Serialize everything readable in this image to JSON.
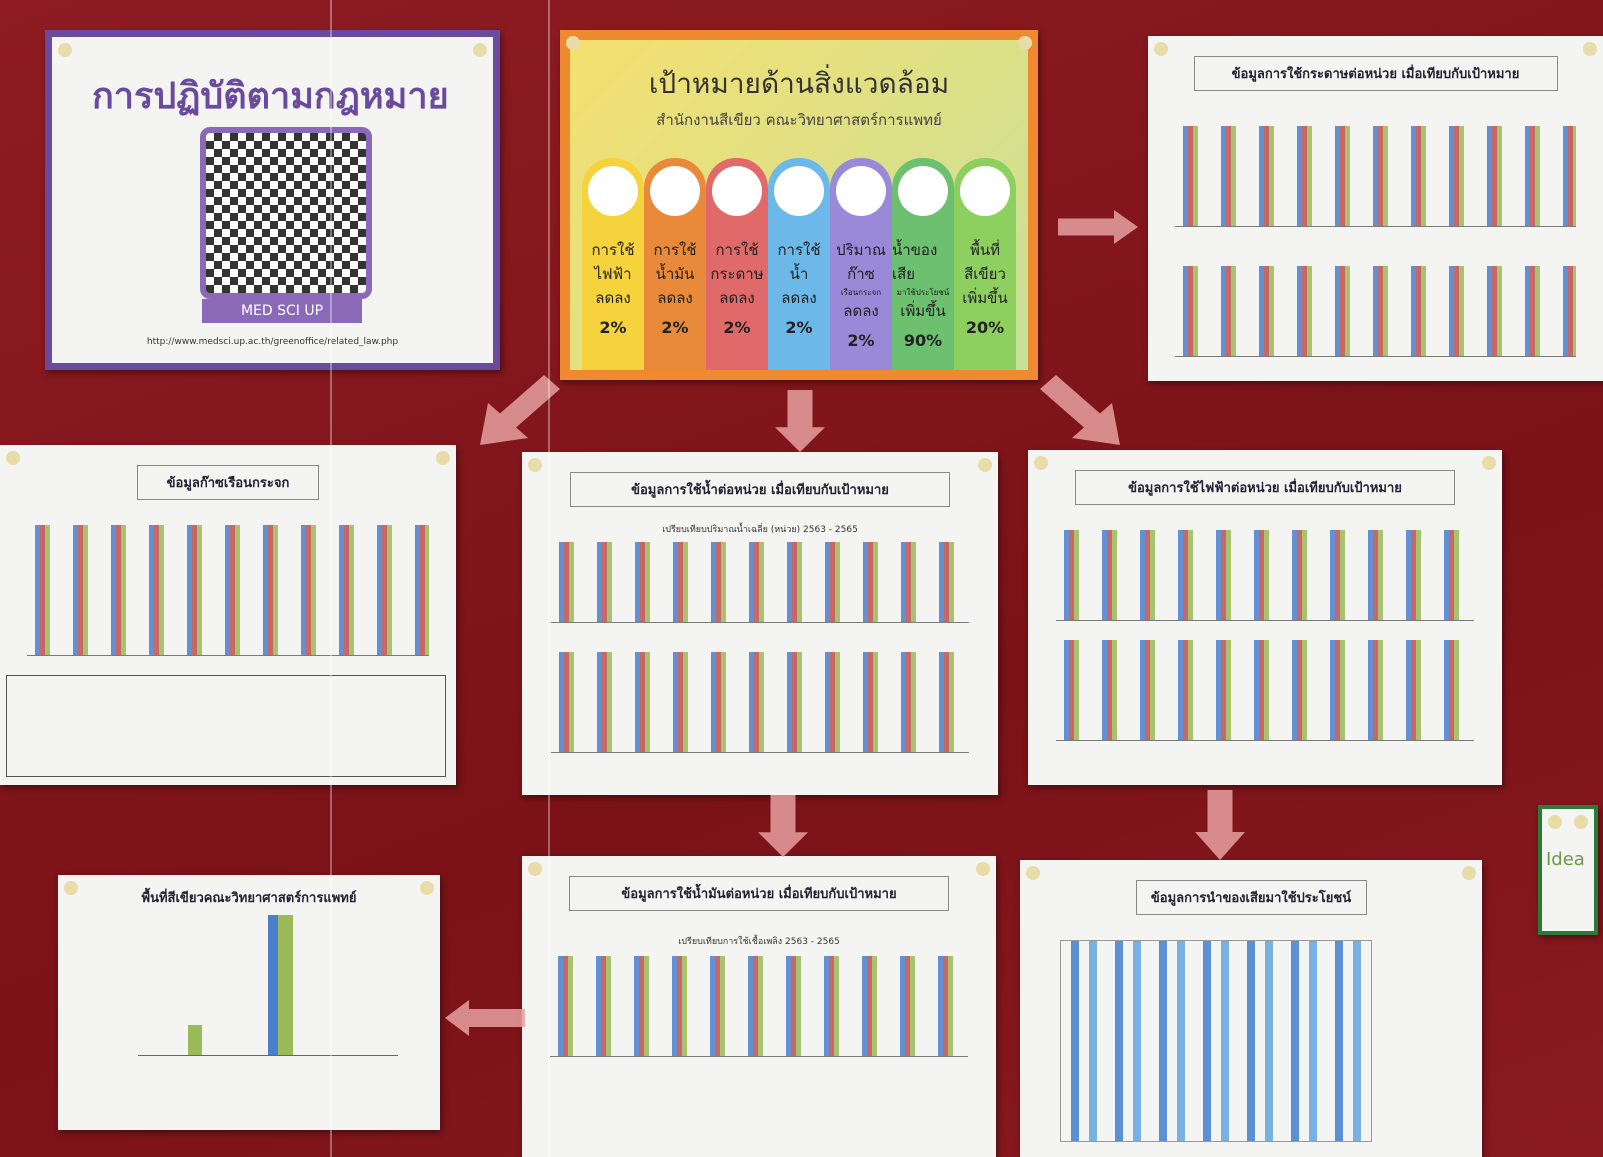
{
  "law_poster": {
    "title": "การปฏิบัติตามกฎหมาย",
    "qr_caption": "MED SCI UP",
    "url": "http://www.medsci.up.ac.th/greenoffice/related_law.php"
  },
  "goals_poster": {
    "title": "เป้าหมายด้านสิ่งแวดล้อม",
    "subtitle": "สำนักงานสีเขียว คณะวิทยาศาสตร์การแพทย์",
    "goals": [
      {
        "label": "การใช้",
        "subject": "ไฟฟ้า",
        "change": "ลดลง",
        "target": "2%"
      },
      {
        "label": "การใช้",
        "subject": "น้ำมัน",
        "change": "ลดลง",
        "target": "2%"
      },
      {
        "label": "การใช้",
        "subject": "กระดาษ",
        "change": "ลดลง",
        "target": "2%"
      },
      {
        "label": "การใช้",
        "subject": "น้ำ",
        "change": "ลดลง",
        "target": "2%"
      },
      {
        "label": "ปริมาณ",
        "subject": "ก๊าซ",
        "note": "เรือนกระจก",
        "change": "ลดลง",
        "target": "2%"
      },
      {
        "label": "น้ำของเสีย",
        "note": "มาใช้ประโยชน์",
        "change": "เพิ่มขึ้น",
        "target": "90%"
      },
      {
        "label": "พื้นที่",
        "subject": "สีเขียว",
        "change": "เพิ่มขึ้น",
        "target": "20%"
      }
    ]
  },
  "paper_poster": {
    "title": "ข้อมูลการใช้กระดาษต่อหน่วย เมื่อเทียบกับเป้าหมาย"
  },
  "ghg_poster": {
    "title": "ข้อมูลก๊าซเรือนกระจก"
  },
  "water_poster": {
    "title": "ข้อมูลการใช้น้ำต่อหน่วย เมื่อเทียบกับเป้าหมาย",
    "subtitle": "เปรียบเทียบปริมาณน้ำเฉลี่ย (หน่วย) 2563 - 2565"
  },
  "electricity_poster": {
    "title": "ข้อมูลการใช้ไฟฟ้าต่อหน่วย เมื่อเทียบกับเป้าหมาย"
  },
  "green_area_poster": {
    "title": "พื้นที่สีเขียวคณะวิทยาศาสตร์การแพทย์"
  },
  "fuel_poster": {
    "title": "ข้อมูลการใช้น้ำมันต่อหน่วย เมื่อเทียบกับเป้าหมาย",
    "subtitle": "เปรียบเทียบการใช้เชื้อเพลิง 2563 - 2565"
  },
  "waste_poster": {
    "title": "ข้อมูลการนำของเสียมาใช้ประโยชน์"
  },
  "side_poster": {
    "title": "Idea"
  }
}
